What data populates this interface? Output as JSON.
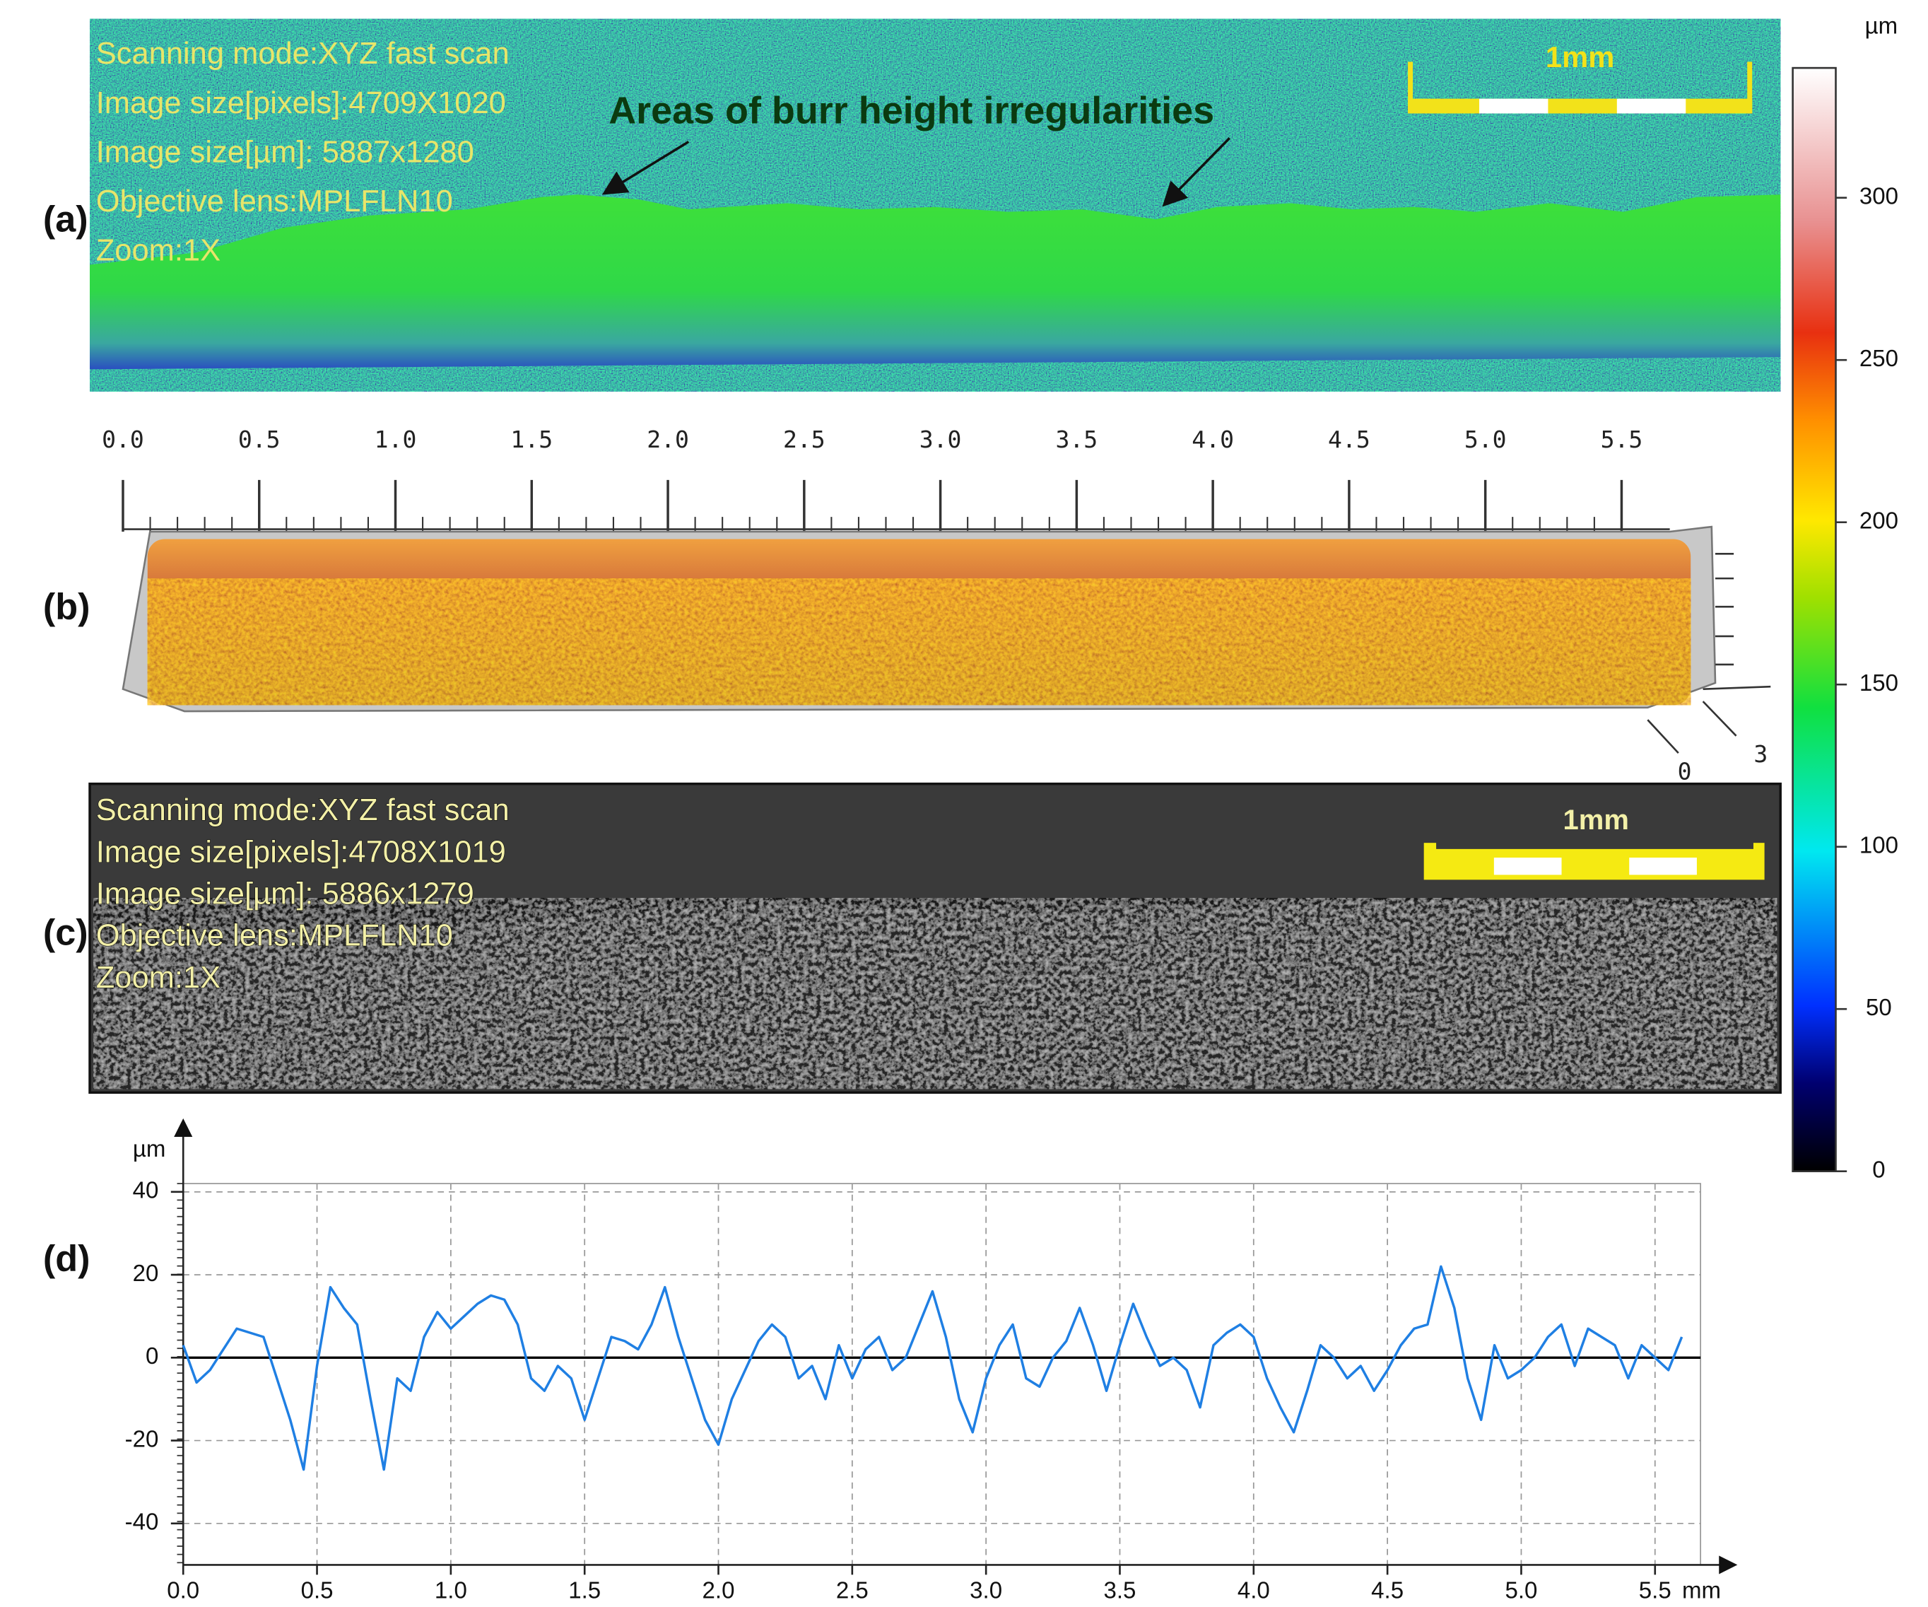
{
  "panel_a": {
    "label": "(a)",
    "info": [
      "Scanning mode:XYZ fast scan",
      "Image size[pixels]:4709X1020",
      "Image size[µm]: 5887x1280",
      "Objective lens:MPLFLN10",
      "Zoom:1X"
    ],
    "annotation": "Areas of burr height irregularities",
    "scalebar": "1mm"
  },
  "panel_b": {
    "label": "(b)",
    "ruler_ticks": [
      {
        "value": 0,
        "label": "0.0"
      },
      {
        "value": 0.5,
        "label": "0.5"
      },
      {
        "value": 1,
        "label": "1.0"
      },
      {
        "value": 1.5,
        "label": "1.5"
      },
      {
        "value": 2,
        "label": "2.0"
      },
      {
        "value": 2.5,
        "label": "2.5"
      },
      {
        "value": 3,
        "label": "3.0"
      },
      {
        "value": 3.5,
        "label": "3.5"
      },
      {
        "value": 4,
        "label": "4.0"
      },
      {
        "value": 4.5,
        "label": "4.5"
      },
      {
        "value": 5,
        "label": "5.0"
      },
      {
        "value": 5.5,
        "label": "5.5"
      }
    ],
    "corner_labels": [
      "0",
      "3"
    ]
  },
  "panel_c": {
    "label": "(c)",
    "info": [
      "Scanning mode:XYZ fast scan",
      "Image size[pixels]:4708X1019",
      "Image size[µm]: 5886x1279",
      "Objective lens:MPLFLN10",
      "Zoom:1X"
    ],
    "scalebar": "1mm"
  },
  "colorbar": {
    "unit": "µm",
    "range": [
      0,
      340
    ],
    "ticks": [
      0,
      50,
      100,
      150,
      200,
      250,
      300
    ]
  },
  "chart_data": {
    "type": "line",
    "label": "(d)",
    "y_label": "µm",
    "x_unit": "mm",
    "xlim": [
      0,
      5.67
    ],
    "ylim": [
      -50,
      42
    ],
    "xticks": [
      {
        "value": 0,
        "label": "0.0"
      },
      {
        "value": 0.5,
        "label": "0.5"
      },
      {
        "value": 1,
        "label": "1.0"
      },
      {
        "value": 1.5,
        "label": "1.5"
      },
      {
        "value": 2,
        "label": "2.0"
      },
      {
        "value": 2.5,
        "label": "2.5"
      },
      {
        "value": 3,
        "label": "3.0"
      },
      {
        "value": 3.5,
        "label": "3.5"
      },
      {
        "value": 4,
        "label": "4.0"
      },
      {
        "value": 4.5,
        "label": "4.5"
      },
      {
        "value": 5,
        "label": "5.0"
      },
      {
        "value": 5.5,
        "label": "5.5"
      }
    ],
    "yticks": [
      -40,
      -20,
      0,
      20,
      40
    ],
    "grid": true,
    "x": [
      0,
      0.05,
      0.1,
      0.15,
      0.2,
      0.25,
      0.3,
      0.35,
      0.4,
      0.45,
      0.5,
      0.55,
      0.6,
      0.65,
      0.7,
      0.75,
      0.8,
      0.85,
      0.9,
      0.95,
      1,
      1.05,
      1.1,
      1.15,
      1.2,
      1.25,
      1.3,
      1.35,
      1.4,
      1.45,
      1.5,
      1.55,
      1.6,
      1.65,
      1.7,
      1.75,
      1.8,
      1.85,
      1.9,
      1.95,
      2,
      2.05,
      2.1,
      2.15,
      2.2,
      2.25,
      2.3,
      2.35,
      2.4,
      2.45,
      2.5,
      2.55,
      2.6,
      2.65,
      2.7,
      2.75,
      2.8,
      2.85,
      2.9,
      2.95,
      3,
      3.05,
      3.1,
      3.15,
      3.2,
      3.25,
      3.3,
      3.35,
      3.4,
      3.45,
      3.5,
      3.55,
      3.6,
      3.65,
      3.7,
      3.75,
      3.8,
      3.85,
      3.9,
      3.95,
      4,
      4.05,
      4.1,
      4.15,
      4.2,
      4.25,
      4.3,
      4.35,
      4.4,
      4.45,
      4.5,
      4.55,
      4.6,
      4.65,
      4.7,
      4.75,
      4.8,
      4.85,
      4.9,
      4.95,
      5,
      5.05,
      5.1,
      5.15,
      5.2,
      5.25,
      5.3,
      5.35,
      5.4,
      5.45,
      5.5,
      5.55,
      5.6
    ],
    "series": [
      {
        "color": "#1f7fe3",
        "values": [
          3,
          -6,
          -3,
          2,
          7,
          6,
          5,
          -5,
          -15,
          -27,
          -2,
          17,
          12,
          8,
          -10,
          -27,
          -5,
          -8,
          5,
          11,
          7,
          10,
          13,
          15,
          14,
          8,
          -5,
          -8,
          -2,
          -5,
          -15,
          -5,
          5,
          4,
          2,
          8,
          17,
          5,
          -5,
          -15,
          -21,
          -10,
          -3,
          4,
          8,
          5,
          -5,
          -2,
          -10,
          3,
          -5,
          2,
          5,
          -3,
          0,
          8,
          16,
          5,
          -10,
          -18,
          -5,
          3,
          8,
          -5,
          -7,
          0,
          4,
          12,
          3,
          -8,
          3,
          13,
          5,
          -2,
          0,
          -3,
          -12,
          3,
          6,
          8,
          5,
          -5,
          -12,
          -18,
          -8,
          3,
          0,
          -5,
          -2,
          -8,
          -3,
          3,
          7,
          8,
          22,
          12,
          -5,
          -15,
          3,
          -5,
          -3,
          0,
          5,
          8,
          -2,
          7,
          5,
          3,
          -5,
          3,
          0,
          -3,
          5
        ]
      }
    ]
  }
}
